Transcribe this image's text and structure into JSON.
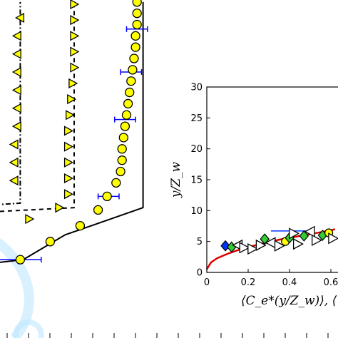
{
  "colors": {
    "marker_fill": "#ffff00",
    "errorbar": "#0000ff",
    "fit_curve": "#dd0000",
    "watermark": "#bfe7ff",
    "inset_blue": "#0033ff",
    "inset_green": "#33cc33"
  },
  "chart_data": [
    {
      "type": "line",
      "panel": "main",
      "series": [
        {
          "marker": "circle",
          "points": [
            [
              0.02,
              0.5
            ],
            [
              0.12,
              1.3
            ],
            [
              0.22,
              2.0
            ],
            [
              0.28,
              2.7
            ],
            [
              0.31,
              3.3
            ],
            [
              0.34,
              3.9
            ],
            [
              0.355,
              4.4
            ],
            [
              0.36,
              4.9
            ],
            [
              0.36,
              5.4
            ],
            [
              0.365,
              5.9
            ],
            [
              0.37,
              6.4
            ],
            [
              0.375,
              6.9
            ],
            [
              0.38,
              7.4
            ],
            [
              0.385,
              7.9
            ],
            [
              0.39,
              8.4
            ],
            [
              0.395,
              8.9
            ],
            [
              0.4,
              9.4
            ],
            [
              0.405,
              9.9
            ],
            [
              0.405,
              10.4
            ],
            [
              0.41,
              10.9
            ],
            [
              0.41,
              11.4
            ],
            [
              0.41,
              11.9
            ]
          ],
          "line": [
            [
              -0.1,
              0.3
            ],
            [
              0.03,
              0.5
            ],
            [
              0.17,
              1.6
            ],
            [
              0.43,
              2.8
            ],
            [
              0.43,
              11.9
            ]
          ]
        },
        {
          "marker": "triangle-right",
          "points": [
            [
              0.05,
              2.3
            ],
            [
              0.15,
              2.8
            ],
            [
              0.18,
              3.4
            ],
            [
              0.18,
              4.1
            ],
            [
              0.18,
              4.8
            ],
            [
              0.18,
              5.5
            ],
            [
              0.18,
              6.2
            ],
            [
              0.185,
              6.9
            ],
            [
              0.19,
              7.6
            ],
            [
              0.195,
              8.3
            ],
            [
              0.2,
              9.0
            ],
            [
              0.2,
              9.7
            ],
            [
              0.2,
              10.4
            ],
            [
              0.2,
              11.1
            ],
            [
              0.2,
              11.8
            ]
          ],
          "line": [
            [
              -0.1,
              2.6
            ],
            [
              0.2,
              2.8
            ],
            [
              0.2,
              11.9
            ]
          ]
        },
        {
          "marker": "triangle-left",
          "points": [
            [
              0.0,
              4.0
            ],
            [
              0.0,
              4.8
            ],
            [
              0.0,
              5.6
            ],
            [
              0.01,
              6.4
            ],
            [
              0.01,
              7.2
            ],
            [
              0.01,
              8.0
            ],
            [
              0.01,
              8.8
            ],
            [
              0.01,
              9.6
            ],
            [
              0.01,
              10.4
            ],
            [
              0.02,
              11.2
            ]
          ],
          "line": [
            [
              -0.1,
              2.9
            ],
            [
              0.02,
              3.0
            ],
            [
              0.02,
              11.9
            ]
          ]
        }
      ],
      "error_bars": [
        {
          "x": 0.02,
          "y": 0.5,
          "xerr": 0.07
        },
        {
          "x": 0.315,
          "y": 3.3,
          "xerr": 0.035
        },
        {
          "x": 0.37,
          "y": 6.7,
          "xerr": 0.035
        },
        {
          "x": 0.39,
          "y": 8.8,
          "xerr": 0.035
        },
        {
          "x": 0.41,
          "y": 10.7,
          "xerr": 0.035
        }
      ]
    },
    {
      "type": "scatter",
      "panel": "inset",
      "xlabel": "⟨C_e*(y/Z_w)⟩, ⟨",
      "ylabel": "y/Z_w",
      "xlim": [
        0,
        0.62
      ],
      "ylim": [
        0,
        30
      ],
      "x_ticks": [
        "0",
        "0.2",
        "0.4",
        "0.6"
      ],
      "y_ticks": [
        "0",
        "5",
        "10",
        "15",
        "20",
        "25",
        "30"
      ],
      "fit_curve": {
        "x": [
          0.0,
          0.02,
          0.05,
          0.1,
          0.15,
          0.2,
          0.25,
          0.3,
          0.35,
          0.4,
          0.45,
          0.5,
          0.55,
          0.6,
          0.62
        ],
        "y": [
          0.5,
          1.6,
          2.3,
          3.0,
          3.6,
          4.1,
          4.5,
          4.9,
          5.3,
          5.6,
          5.9,
          6.2,
          6.5,
          6.8,
          7.0
        ]
      },
      "markers": [
        {
          "x": 0.09,
          "y": 4.3,
          "shape": "diamond",
          "color": "blue"
        },
        {
          "x": 0.12,
          "y": 4.1,
          "shape": "diamond",
          "color": "green"
        },
        {
          "x": 0.15,
          "y": 4.4,
          "shape": "triangle-left",
          "color": "white"
        },
        {
          "x": 0.18,
          "y": 4.0,
          "shape": "triangle-right",
          "color": "white"
        },
        {
          "x": 0.22,
          "y": 3.8,
          "shape": "triangle-right",
          "color": "white"
        },
        {
          "x": 0.26,
          "y": 4.4,
          "shape": "triangle-right",
          "color": "white"
        },
        {
          "x": 0.28,
          "y": 5.4,
          "shape": "diamond",
          "color": "green"
        },
        {
          "x": 0.31,
          "y": 4.8,
          "shape": "triangle-left",
          "color": "white"
        },
        {
          "x": 0.35,
          "y": 4.3,
          "shape": "triangle-right",
          "color": "white"
        },
        {
          "x": 0.38,
          "y": 5.0,
          "shape": "circle",
          "color": "yellow"
        },
        {
          "x": 0.4,
          "y": 5.6,
          "shape": "diamond",
          "color": "green"
        },
        {
          "x": 0.42,
          "y": 6.3,
          "shape": "triangle-right",
          "color": "white"
        },
        {
          "x": 0.44,
          "y": 4.6,
          "shape": "triangle-right",
          "color": "white"
        },
        {
          "x": 0.47,
          "y": 5.9,
          "shape": "diamond",
          "color": "green"
        },
        {
          "x": 0.5,
          "y": 6.6,
          "shape": "triangle-left",
          "color": "white"
        },
        {
          "x": 0.53,
          "y": 5.2,
          "shape": "triangle-right",
          "color": "white"
        },
        {
          "x": 0.56,
          "y": 6.0,
          "shape": "diamond",
          "color": "green"
        },
        {
          "x": 0.59,
          "y": 6.4,
          "shape": "circle",
          "color": "yellow"
        },
        {
          "x": 0.61,
          "y": 5.5,
          "shape": "triangle-right",
          "color": "white"
        }
      ],
      "error_bars": [
        {
          "x": 0.4,
          "y": 6.7,
          "xerr": 0.09
        }
      ]
    }
  ]
}
